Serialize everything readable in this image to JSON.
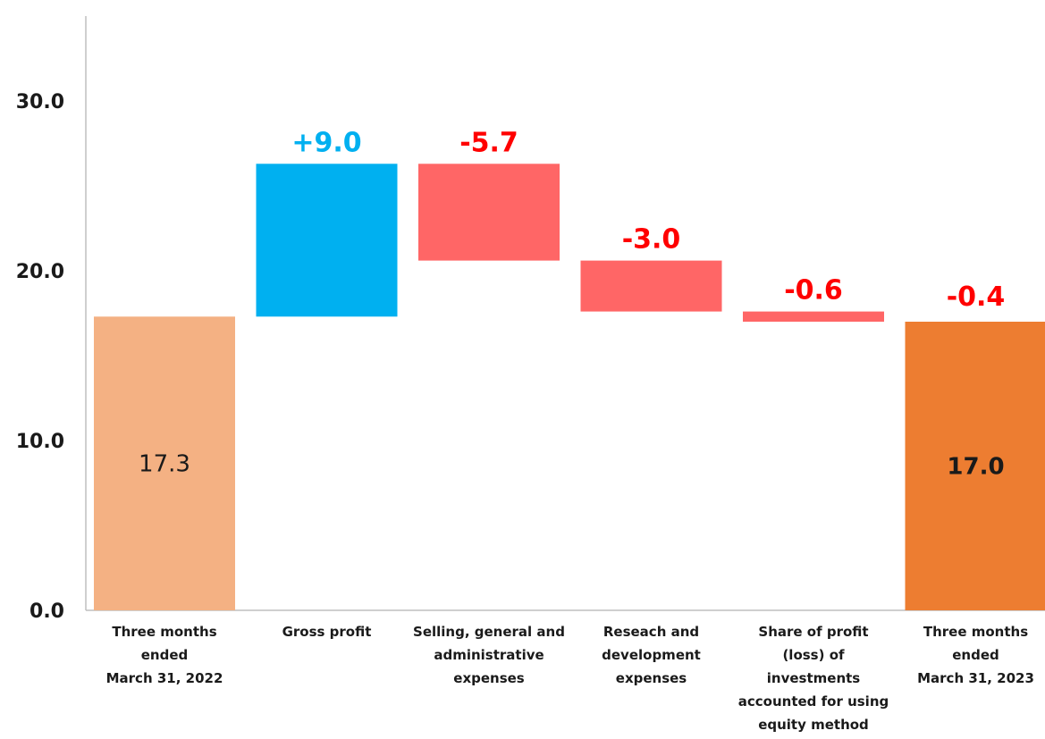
{
  "chart_data": {
    "type": "waterfall",
    "title": "",
    "xlabel": "",
    "ylabel": "",
    "ylim": [
      0,
      30
    ],
    "yticks": [
      "0.0",
      "10.0",
      "20.0",
      "30.0"
    ],
    "grid": false,
    "legend": "none",
    "categories": [
      [
        "Three months",
        "ended",
        "March 31, 2022"
      ],
      [
        "Gross profit"
      ],
      [
        "Selling, general and",
        "administrative",
        "expenses"
      ],
      [
        "Reseach and",
        "development",
        "expenses"
      ],
      [
        "Share of profit",
        "(loss) of",
        "investments",
        "accounted for using",
        "equity method"
      ],
      [
        "Three months",
        "ended",
        "March 31, 2023"
      ]
    ],
    "bars": [
      {
        "kind": "total",
        "value": 17.3,
        "label": "17.3",
        "label_position": "inside",
        "color": "#F4B183"
      },
      {
        "kind": "delta",
        "value": 9.0,
        "label": "+9.0",
        "label_position": "above",
        "color": "#00B0F0",
        "label_color": "#00B0F0"
      },
      {
        "kind": "delta",
        "value": -5.7,
        "label": "-5.7",
        "label_position": "above",
        "color": "#FF6666",
        "label_color": "#FF0000"
      },
      {
        "kind": "delta",
        "value": -3.0,
        "label": "-3.0",
        "label_position": "above",
        "color": "#FF6666",
        "label_color": "#FF0000"
      },
      {
        "kind": "delta",
        "value": -0.6,
        "label": "-0.6",
        "label_position": "above",
        "color": "#FF6666",
        "label_color": "#FF0000"
      },
      {
        "kind": "total",
        "value": 17.0,
        "label": "17.0",
        "label_position": "inside",
        "color": "#ED7D31",
        "extra_label": "-0.4",
        "extra_label_color": "#FF0000"
      }
    ]
  }
}
